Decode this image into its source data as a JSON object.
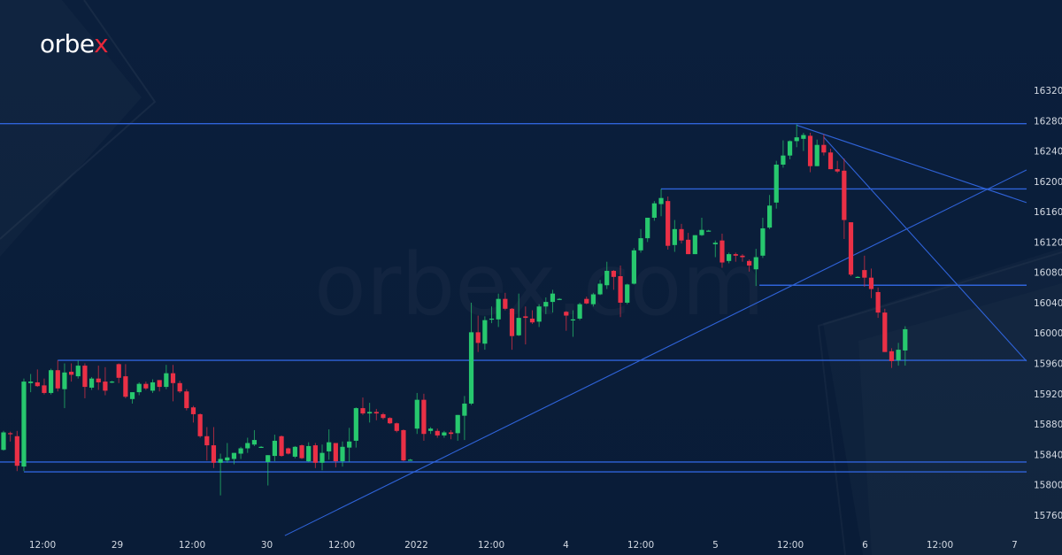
{
  "logo": {
    "text": "orbex",
    "main": "orbe",
    "accent": "x",
    "accent_color": "#e8283a"
  },
  "watermark": "orbex.com",
  "colors": {
    "background": "#0a1e3b",
    "up": "#27c86e",
    "down": "#ea3046",
    "lines": "#2f63d9",
    "axis_text": "#d4dae3"
  },
  "chart_data": {
    "type": "candlestick",
    "title": "",
    "y_axis": {
      "ticks": [
        16320,
        16280,
        16240,
        16200,
        16160,
        16120,
        16080,
        16040,
        16000,
        15960,
        15920,
        15880,
        15840,
        15800,
        15760
      ],
      "range": [
        15707,
        16439
      ],
      "position": "right"
    },
    "x_axis": {
      "ticks": [
        "12:00",
        "29",
        "12:00",
        "30",
        "12:00",
        "2022",
        "12:00",
        "4",
        "12:00",
        "5",
        "12:00",
        "6",
        "12:00",
        "7"
      ]
    },
    "grid": false,
    "candles_ohlc": [
      [
        15846,
        15871,
        15845,
        15869
      ],
      [
        15868,
        15870,
        15857,
        15867
      ],
      [
        15864,
        15871,
        15818,
        15825
      ],
      [
        15824,
        15940,
        15818,
        15936
      ],
      [
        15934,
        15946,
        15922,
        15936
      ],
      [
        15935,
        15952,
        15929,
        15930
      ],
      [
        15931,
        15940,
        15919,
        15921
      ],
      [
        15921,
        15953,
        15919,
        15951
      ],
      [
        15951,
        15964,
        15923,
        15927
      ],
      [
        15926,
        15960,
        15901,
        15948
      ],
      [
        15949,
        15960,
        15936,
        15945
      ],
      [
        15943,
        15964,
        15940,
        15957
      ],
      [
        15957,
        15960,
        15914,
        15929
      ],
      [
        15928,
        15942,
        15925,
        15940
      ],
      [
        15940,
        15957,
        15925,
        15935
      ],
      [
        15936,
        15955,
        15918,
        15924
      ],
      [
        15935,
        15937,
        15934,
        15936
      ],
      [
        15959,
        15960,
        15934,
        15941
      ],
      [
        15943,
        15959,
        15914,
        15916
      ],
      [
        15913,
        15922,
        15907,
        15922
      ],
      [
        15922,
        15935,
        15918,
        15933
      ],
      [
        15933,
        15936,
        15925,
        15927
      ],
      [
        15924,
        15939,
        15921,
        15935
      ],
      [
        15938,
        15938,
        15923,
        15929
      ],
      [
        15929,
        15958,
        15926,
        15947
      ],
      [
        15947,
        15958,
        15910,
        15934
      ],
      [
        15934,
        15937,
        15921,
        15923
      ],
      [
        15923,
        15926,
        15898,
        15901
      ],
      [
        15902,
        15904,
        15882,
        15893
      ],
      [
        15893,
        15894,
        15862,
        15864
      ],
      [
        15864,
        15876,
        15832,
        15852
      ],
      [
        15852,
        15876,
        15822,
        15829
      ],
      [
        15829,
        15841,
        15786,
        15834
      ],
      [
        15832,
        15855,
        15829,
        15836
      ],
      [
        15834,
        15842,
        15827,
        15842
      ],
      [
        15841,
        15850,
        15834,
        15848
      ],
      [
        15848,
        15862,
        15842,
        15855
      ],
      [
        15853,
        15872,
        15851,
        15859
      ],
      [
        15850,
        15851,
        15849,
        15850
      ],
      [
        15830,
        15839,
        15799,
        15839
      ],
      [
        15838,
        15866,
        15831,
        15858
      ],
      [
        15864,
        15865,
        15837,
        15838
      ],
      [
        15848,
        15849,
        15840,
        15841
      ],
      [
        15837,
        15851,
        15835,
        15850
      ],
      [
        15852,
        15853,
        15834,
        15835
      ],
      [
        15831,
        15856,
        15830,
        15851
      ],
      [
        15852,
        15855,
        15822,
        15829
      ],
      [
        15829,
        15853,
        15819,
        15842
      ],
      [
        15844,
        15873,
        15833,
        15856
      ],
      [
        15855,
        15855,
        15823,
        15831
      ],
      [
        15831,
        15857,
        15824,
        15850
      ],
      [
        15849,
        15875,
        15830,
        15857
      ],
      [
        15858,
        15902,
        15849,
        15901
      ],
      [
        15901,
        15915,
        15892,
        15894
      ],
      [
        15894,
        15908,
        15882,
        15896
      ],
      [
        15896,
        15900,
        15885,
        15894
      ],
      [
        15893,
        15895,
        15886,
        15888
      ],
      [
        15888,
        15889,
        15880,
        15881
      ],
      [
        15881,
        15882,
        15869,
        15871
      ],
      [
        15872,
        15873,
        15831,
        15832
      ],
      [
        15833,
        15834,
        15832,
        15833
      ],
      [
        15874,
        15921,
        15867,
        15912
      ],
      [
        15912,
        15920,
        15858,
        15867
      ],
      [
        15871,
        15876,
        15867,
        15874
      ],
      [
        15871,
        15874,
        15862,
        15865
      ],
      [
        15865,
        15871,
        15862,
        15869
      ],
      [
        15869,
        15872,
        15860,
        15867
      ],
      [
        15868,
        15892,
        15858,
        15892
      ],
      [
        15891,
        15917,
        15859,
        15907
      ],
      [
        15907,
        16040,
        15905,
        16001
      ],
      [
        16001,
        16023,
        15975,
        15987
      ],
      [
        15986,
        16022,
        15978,
        16017
      ],
      [
        16018,
        16035,
        16013,
        16019
      ],
      [
        16018,
        16052,
        16008,
        16045
      ],
      [
        16045,
        16053,
        16030,
        16032
      ],
      [
        16032,
        16033,
        15978,
        15996
      ],
      [
        15997,
        16052,
        15996,
        16020
      ],
      [
        16022,
        16035,
        15985,
        16020
      ],
      [
        16019,
        16030,
        16012,
        16014
      ],
      [
        16015,
        16038,
        16008,
        16035
      ],
      [
        16035,
        16047,
        16025,
        16041
      ],
      [
        16041,
        16057,
        16027,
        16052
      ],
      [
        16045,
        16046,
        16044,
        16045
      ],
      [
        16028,
        16029,
        16003,
        16023
      ],
      [
        16018,
        16030,
        15995,
        16018
      ],
      [
        16019,
        16040,
        16017,
        16038
      ],
      [
        16045,
        16048,
        16038,
        16039
      ],
      [
        16038,
        16053,
        16035,
        16051
      ],
      [
        16051,
        16070,
        16050,
        16065
      ],
      [
        16063,
        16094,
        16058,
        16082
      ],
      [
        16082,
        16083,
        16057,
        16074
      ],
      [
        16075,
        16089,
        16021,
        16040
      ],
      [
        16040,
        16065,
        16038,
        16064
      ],
      [
        16065,
        16112,
        16064,
        16109
      ],
      [
        16109,
        16137,
        16106,
        16125
      ],
      [
        16125,
        16152,
        16120,
        16152
      ],
      [
        16152,
        16174,
        16148,
        16171
      ],
      [
        16170,
        16190,
        16154,
        16178
      ],
      [
        16174,
        16180,
        16110,
        16115
      ],
      [
        16116,
        16149,
        16107,
        16137
      ],
      [
        16137,
        16144,
        16118,
        16122
      ],
      [
        16123,
        16132,
        16104,
        16104
      ],
      [
        16104,
        16129,
        16104,
        16129
      ],
      [
        16129,
        16152,
        16128,
        16136
      ],
      [
        16135,
        16136,
        16134,
        16135
      ],
      [
        16117,
        16122,
        16100,
        16119
      ],
      [
        16122,
        16131,
        16086,
        16093
      ],
      [
        16095,
        16106,
        16092,
        16104
      ],
      [
        16104,
        16106,
        16094,
        16102
      ],
      [
        16102,
        16104,
        16094,
        16100
      ],
      [
        16095,
        16097,
        16081,
        16089
      ],
      [
        16084,
        16111,
        16062,
        16100
      ],
      [
        16102,
        16152,
        16099,
        16138
      ],
      [
        16139,
        16182,
        16137,
        16168
      ],
      [
        16172,
        16227,
        16164,
        16222
      ],
      [
        16222,
        16254,
        16218,
        16234
      ],
      [
        16234,
        16254,
        16229,
        16253
      ],
      [
        16253,
        16275,
        16245,
        16258
      ],
      [
        16256,
        16264,
        16240,
        16261
      ],
      [
        16260,
        16264,
        16212,
        16220
      ],
      [
        16220,
        16255,
        16220,
        16248
      ],
      [
        16248,
        16262,
        16234,
        16238
      ],
      [
        16238,
        16243,
        16216,
        16216
      ],
      [
        16216,
        16227,
        16211,
        16213
      ],
      [
        16214,
        16230,
        16124,
        16149
      ],
      [
        16146,
        16146,
        16075,
        16077
      ],
      [
        16074,
        16075,
        16073,
        16074
      ],
      [
        16083,
        16102,
        16061,
        16073
      ],
      [
        16073,
        16085,
        16046,
        16058
      ],
      [
        16054,
        16060,
        16020,
        16027
      ],
      [
        16027,
        16032,
        15975,
        15975
      ],
      [
        15976,
        15980,
        15954,
        15963
      ],
      [
        15964,
        15987,
        15957,
        15978
      ],
      [
        15977,
        16009,
        15957,
        16005
      ]
    ],
    "horizontal_levels": [
      {
        "price": 16276,
        "from_candle": -1
      },
      {
        "price": 16190,
        "from_candle": 97
      },
      {
        "price": 16063,
        "from_candle": 111.5
      },
      {
        "price": 15964,
        "from_candle": 8
      },
      {
        "price": 15830,
        "from_candle": -1
      },
      {
        "price": 15817,
        "from_candle": 3
      }
    ],
    "trendlines": [
      {
        "from": [
          41.5,
          15733
        ],
        "to": [
          150.9,
          16215
        ]
      },
      {
        "from": [
          117,
          16274
        ],
        "to": [
          150.9,
          16172
        ]
      },
      {
        "from": [
          121,
          16258
        ],
        "to": [
          150.9,
          15963
        ]
      }
    ]
  }
}
